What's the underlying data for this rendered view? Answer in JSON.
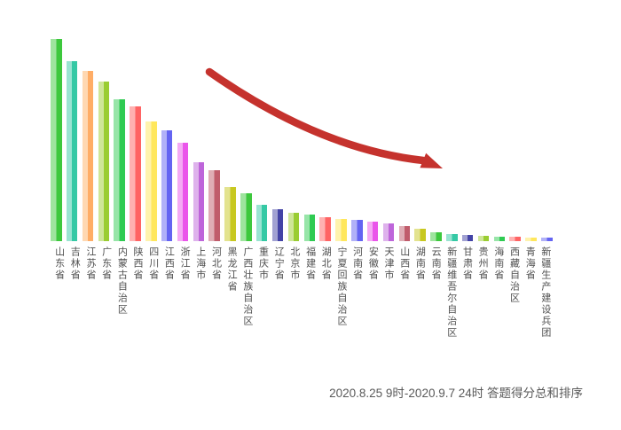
{
  "page": {
    "background_color": "#ffffff"
  },
  "chart_data": {
    "type": "bar",
    "title": "",
    "caption": "2020.8.25 9时-2020.9.7 24时 答题得分总和排序",
    "xlabel": "",
    "ylabel": "",
    "axis_lines": "none",
    "gridlines": "off",
    "legend": "none",
    "value_scale_note": "no numeric axis shown; values are bar heights in screen pixels (baseline y=272)",
    "categories": [
      "山东省",
      "吉林省",
      "江苏省",
      "广东省",
      "内蒙古自治区",
      "陕西省",
      "四川省",
      "江西省",
      "浙江省",
      "上海市",
      "河北省",
      "黑龙江省",
      "广西壮族自治区",
      "重庆市",
      "辽宁省",
      "北京市",
      "福建省",
      "湖北省",
      "宁夏回族自治区",
      "河南省",
      "安徽省",
      "天津市",
      "山西省",
      "湖南省",
      "云南省",
      "新疆维吾尔自治区",
      "甘肃省",
      "贵州省",
      "海南省",
      "西藏自治区",
      "青海省",
      "新疆生产建设兵团"
    ],
    "values": [
      228,
      203,
      192,
      180,
      160,
      152,
      135,
      125,
      111,
      89,
      80,
      61,
      54,
      41,
      36,
      32,
      30,
      27,
      25,
      24,
      22,
      20,
      17,
      14,
      10,
      8,
      7,
      6,
      5,
      5,
      4,
      4
    ],
    "bar_colors": [
      {
        "light": "#9EE49E",
        "dark": "#3DC83D"
      },
      {
        "light": "#9AE4D2",
        "dark": "#35C9A5"
      },
      {
        "light": "#FFD8B2",
        "dark": "#FFAD66"
      },
      {
        "light": "#CFE698",
        "dark": "#9ACD32"
      },
      {
        "light": "#97E5A8",
        "dark": "#2FCB52"
      },
      {
        "light": "#FFB1B1",
        "dark": "#FF6464"
      },
      {
        "light": "#FFF3AD",
        "dark": "#FFE75C"
      },
      {
        "light": "#B1B1F8",
        "dark": "#6464F2"
      },
      {
        "light": "#F4AAF4",
        "dark": "#EA55EA"
      },
      {
        "light": "#DEB2EC",
        "dark": "#BE65DA"
      },
      {
        "light": "#DFADB5",
        "dark": "#C05C6B"
      },
      {
        "light": "#E3E38F",
        "dark": "#C8C820"
      },
      {
        "light": "#9EE49E",
        "dark": "#3DC83D"
      },
      {
        "light": "#9AE4D2",
        "dark": "#35C9A5"
      },
      {
        "light": "#A1A1D2",
        "dark": "#4343A6"
      },
      {
        "light": "#CFE698",
        "dark": "#9ACD32"
      },
      {
        "light": "#97E5A8",
        "dark": "#2FCB52"
      },
      {
        "light": "#FFB1B1",
        "dark": "#FF6464"
      },
      {
        "light": "#FFF3AD",
        "dark": "#FFE75C"
      },
      {
        "light": "#B1B1F8",
        "dark": "#6464F2"
      },
      {
        "light": "#F4AAF4",
        "dark": "#EA55EA"
      },
      {
        "light": "#DEB2EC",
        "dark": "#BE65DA"
      },
      {
        "light": "#DFADB5",
        "dark": "#C05C6B"
      },
      {
        "light": "#E3E38F",
        "dark": "#C8C820"
      },
      {
        "light": "#9EE49E",
        "dark": "#3DC83D"
      },
      {
        "light": "#9AE4D2",
        "dark": "#35C9A5"
      },
      {
        "light": "#A1A1D2",
        "dark": "#4343A6"
      },
      {
        "light": "#CFE698",
        "dark": "#9ACD32"
      },
      {
        "light": "#97E5A8",
        "dark": "#2FCB52"
      },
      {
        "light": "#FFB1B1",
        "dark": "#FF6464"
      },
      {
        "light": "#FFF3AD",
        "dark": "#FFE75C"
      },
      {
        "light": "#B1B1F8",
        "dark": "#6464F2"
      }
    ],
    "annotation_arrow": {
      "shape": "curved-arrow-down-right",
      "color": "#C5322D"
    },
    "label_color": "#4F4F4F",
    "caption_color": "#595959"
  }
}
